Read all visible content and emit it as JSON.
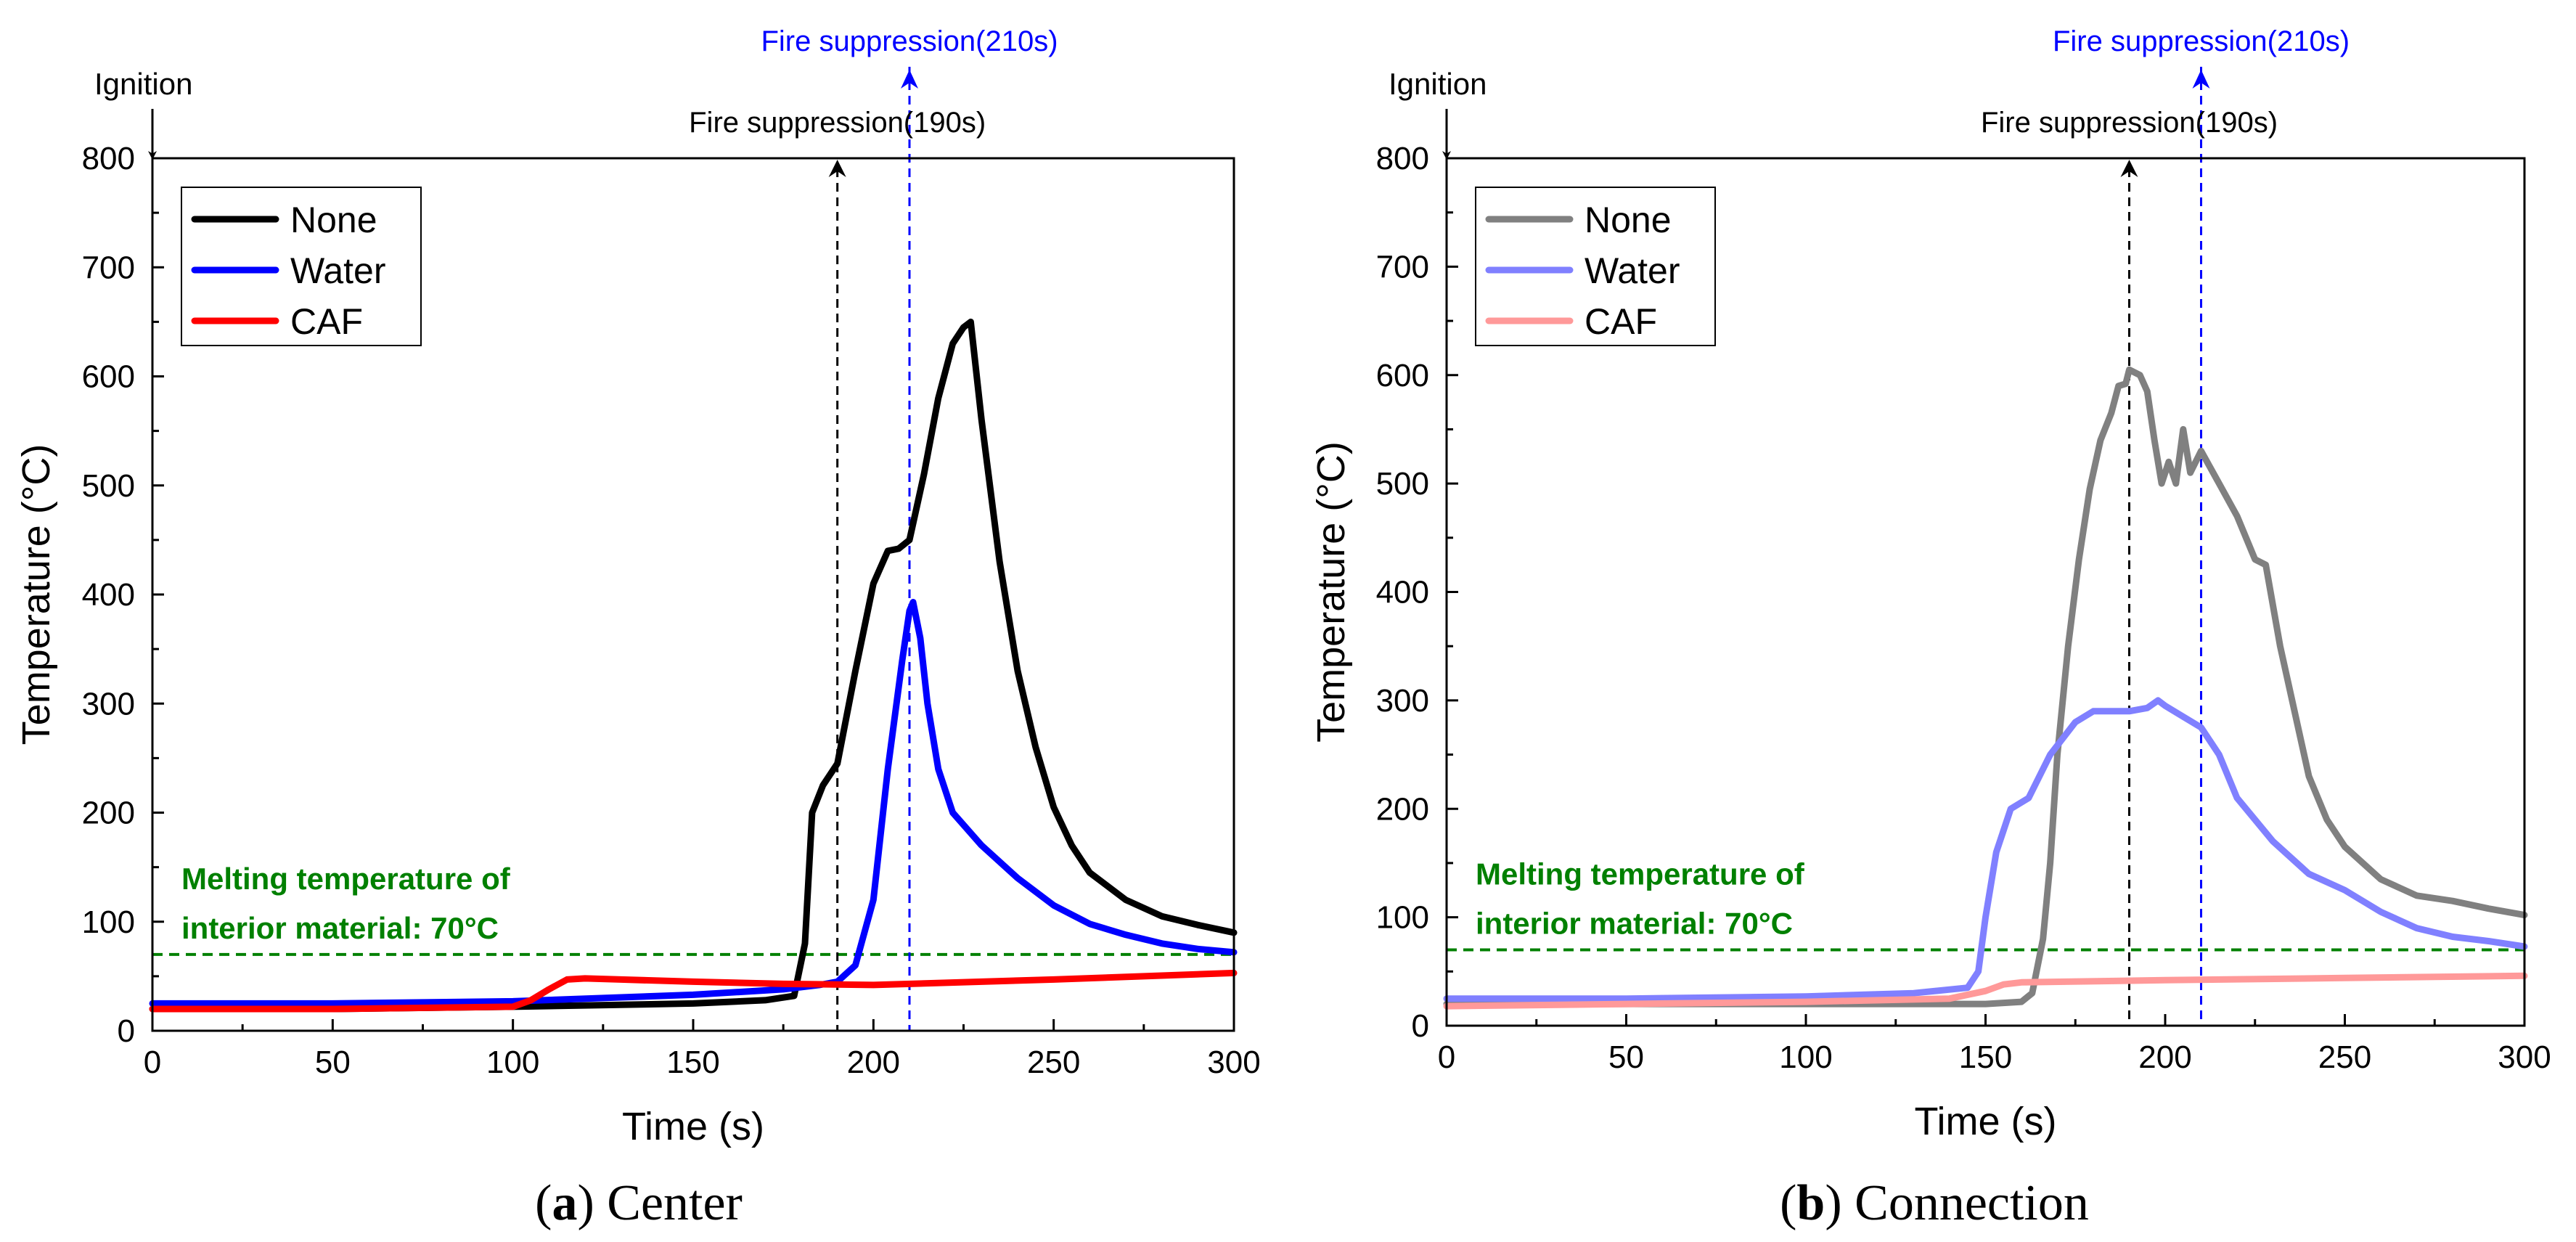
{
  "chart_data": [
    {
      "type": "line",
      "panel_letter": "a",
      "caption_name": " Center",
      "xlabel": "Time (s)",
      "ylabel": "Temperature (°C)",
      "xlim": [
        0,
        300
      ],
      "ylim": [
        0,
        800
      ],
      "xticks": [
        "0",
        "50",
        "100",
        "150",
        "200",
        "250",
        "300"
      ],
      "yticks": [
        "0",
        "100",
        "200",
        "300",
        "400",
        "500",
        "600",
        "700",
        "800"
      ],
      "legend": [
        "None",
        "Water",
        "CAF"
      ],
      "series": [
        {
          "name": "None",
          "color": "#000000",
          "points": [
            [
              0,
              20
            ],
            [
              50,
              20
            ],
            [
              100,
              22
            ],
            [
              150,
              25
            ],
            [
              170,
              28
            ],
            [
              178,
              32
            ],
            [
              181,
              80
            ],
            [
              183,
              200
            ],
            [
              186,
              225
            ],
            [
              190,
              245
            ],
            [
              195,
              330
            ],
            [
              200,
              410
            ],
            [
              204,
              440
            ],
            [
              207,
              442
            ],
            [
              210,
              450
            ],
            [
              214,
              510
            ],
            [
              218,
              580
            ],
            [
              222,
              630
            ],
            [
              225,
              645
            ],
            [
              227,
              650
            ],
            [
              230,
              560
            ],
            [
              235,
              430
            ],
            [
              240,
              330
            ],
            [
              245,
              260
            ],
            [
              250,
              205
            ],
            [
              255,
              170
            ],
            [
              260,
              145
            ],
            [
              270,
              120
            ],
            [
              280,
              105
            ],
            [
              290,
              97
            ],
            [
              300,
              90
            ]
          ]
        },
        {
          "name": "Water",
          "color": "#0000ff",
          "points": [
            [
              0,
              25
            ],
            [
              50,
              25
            ],
            [
              100,
              27
            ],
            [
              150,
              33
            ],
            [
              175,
              38
            ],
            [
              185,
              42
            ],
            [
              190,
              45
            ],
            [
              195,
              60
            ],
            [
              200,
              120
            ],
            [
              204,
              240
            ],
            [
              208,
              340
            ],
            [
              210,
              385
            ],
            [
              211,
              393
            ],
            [
              213,
              360
            ],
            [
              215,
              300
            ],
            [
              218,
              240
            ],
            [
              222,
              200
            ],
            [
              230,
              170
            ],
            [
              240,
              140
            ],
            [
              250,
              115
            ],
            [
              260,
              98
            ],
            [
              270,
              88
            ],
            [
              280,
              80
            ],
            [
              290,
              75
            ],
            [
              300,
              72
            ]
          ]
        },
        {
          "name": "CAF",
          "color": "#ff0000",
          "points": [
            [
              0,
              20
            ],
            [
              50,
              20
            ],
            [
              100,
              22
            ],
            [
              105,
              28
            ],
            [
              110,
              38
            ],
            [
              115,
              47
            ],
            [
              120,
              48
            ],
            [
              130,
              47
            ],
            [
              150,
              45
            ],
            [
              175,
              43
            ],
            [
              200,
              42
            ],
            [
              250,
              47
            ],
            [
              300,
              53
            ]
          ]
        }
      ],
      "ref_lines": {
        "ignition_label": "Ignition",
        "suppression_190_label": "Fire suppression(190s)",
        "suppression_210_label": "Fire suppression(210s)",
        "suppression_190_x": 190,
        "suppression_210_x": 210,
        "melting_value": 70,
        "melting_label_line1": "Melting temperature of",
        "melting_label_line2": "interior material: 70°C"
      },
      "colors": {
        "axis": "#000000",
        "sup190": "#000000",
        "sup210": "#0000ff",
        "melting": "#008000"
      }
    },
    {
      "type": "line",
      "panel_letter": "b",
      "caption_name": " Connection",
      "xlabel": "Time (s)",
      "ylabel": "Temperature (°C)",
      "xlim": [
        0,
        300
      ],
      "ylim": [
        0,
        800
      ],
      "xticks": [
        "0",
        "50",
        "100",
        "150",
        "200",
        "250",
        "300"
      ],
      "yticks": [
        "0",
        "100",
        "200",
        "300",
        "400",
        "500",
        "600",
        "700",
        "800"
      ],
      "legend": [
        "None",
        "Water",
        "CAF"
      ],
      "series": [
        {
          "name": "None",
          "color": "#808080",
          "points": [
            [
              0,
              20
            ],
            [
              50,
              20
            ],
            [
              100,
              20
            ],
            [
              150,
              20
            ],
            [
              160,
              22
            ],
            [
              163,
              30
            ],
            [
              166,
              80
            ],
            [
              168,
              150
            ],
            [
              170,
              250
            ],
            [
              173,
              350
            ],
            [
              176,
              430
            ],
            [
              179,
              495
            ],
            [
              182,
              540
            ],
            [
              185,
              565
            ],
            [
              187,
              590
            ],
            [
              189,
              592
            ],
            [
              190,
              605
            ],
            [
              193,
              600
            ],
            [
              195,
              585
            ],
            [
              197,
              540
            ],
            [
              199,
              500
            ],
            [
              201,
              520
            ],
            [
              203,
              500
            ],
            [
              205,
              550
            ],
            [
              207,
              510
            ],
            [
              210,
              530
            ],
            [
              215,
              500
            ],
            [
              220,
              470
            ],
            [
              225,
              430
            ],
            [
              228,
              425
            ],
            [
              232,
              350
            ],
            [
              240,
              230
            ],
            [
              245,
              190
            ],
            [
              250,
              165
            ],
            [
              260,
              135
            ],
            [
              270,
              120
            ],
            [
              280,
              115
            ],
            [
              290,
              108
            ],
            [
              300,
              102
            ]
          ]
        },
        {
          "name": "Water",
          "color": "#8080ff",
          "points": [
            [
              0,
              25
            ],
            [
              50,
              25
            ],
            [
              100,
              27
            ],
            [
              130,
              30
            ],
            [
              145,
              35
            ],
            [
              148,
              50
            ],
            [
              150,
              100
            ],
            [
              153,
              160
            ],
            [
              157,
              200
            ],
            [
              162,
              210
            ],
            [
              168,
              250
            ],
            [
              175,
              280
            ],
            [
              180,
              290
            ],
            [
              190,
              290
            ],
            [
              195,
              293
            ],
            [
              198,
              300
            ],
            [
              200,
              295
            ],
            [
              205,
              285
            ],
            [
              210,
              275
            ],
            [
              215,
              250
            ],
            [
              220,
              210
            ],
            [
              230,
              170
            ],
            [
              240,
              140
            ],
            [
              250,
              125
            ],
            [
              260,
              105
            ],
            [
              270,
              90
            ],
            [
              280,
              82
            ],
            [
              290,
              78
            ],
            [
              300,
              73
            ]
          ]
        },
        {
          "name": "CAF",
          "color": "#ff9999",
          "points": [
            [
              0,
              18
            ],
            [
              50,
              20
            ],
            [
              100,
              22
            ],
            [
              140,
              25
            ],
            [
              150,
              32
            ],
            [
              155,
              38
            ],
            [
              160,
              40
            ],
            [
              200,
              42
            ],
            [
              250,
              44
            ],
            [
              300,
              46
            ]
          ]
        }
      ],
      "ref_lines": {
        "ignition_label": "Ignition",
        "suppression_190_label": "Fire suppression(190s)",
        "suppression_210_label": "Fire suppression(210s)",
        "suppression_190_x": 190,
        "suppression_210_x": 210,
        "melting_value": 70,
        "melting_label_line1": "Melting temperature of",
        "melting_label_line2": "interior material: 70°C"
      },
      "colors": {
        "axis": "#000000",
        "sup190": "#000000",
        "sup210": "#0000ff",
        "melting": "#008000"
      }
    }
  ]
}
